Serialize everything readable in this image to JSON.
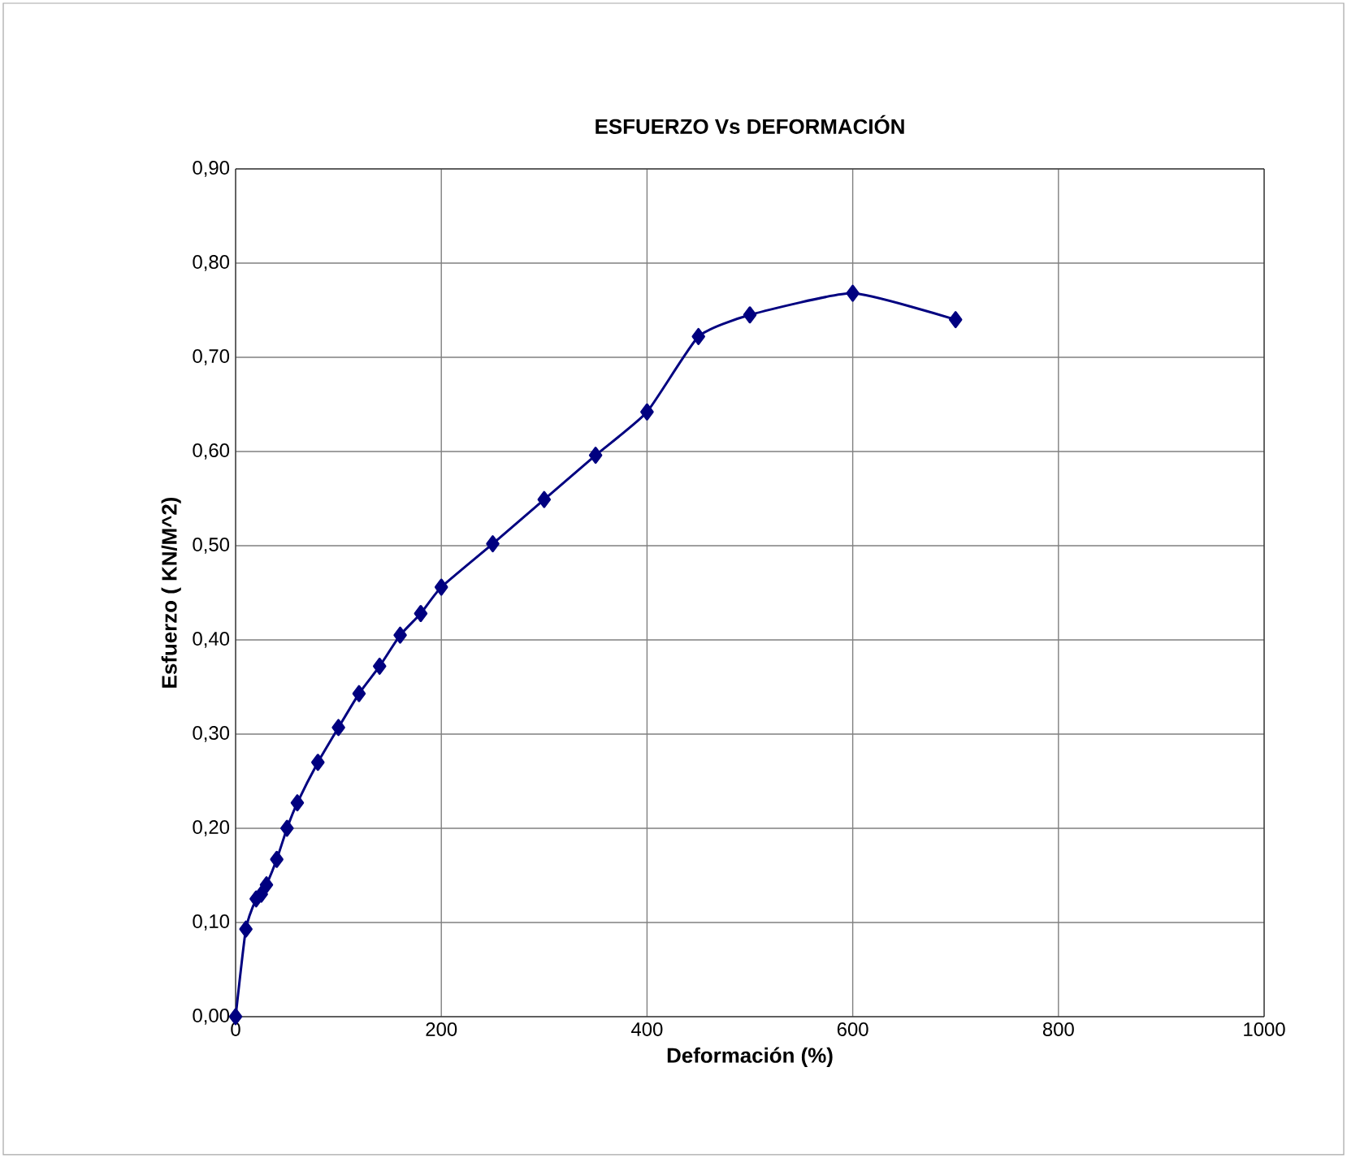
{
  "chart_data": {
    "type": "line",
    "title": "ESFUERZO Vs DEFORMACIÓN",
    "xlabel": "Deformación (%)",
    "ylabel": "Esfuerzo ( KN/M^2)",
    "x": [
      0,
      10,
      20,
      25,
      30,
      40,
      50,
      60,
      80,
      100,
      120,
      140,
      160,
      180,
      200,
      250,
      300,
      350,
      400,
      450,
      500,
      600,
      700
    ],
    "series": [
      {
        "color": "#000080",
        "values": [
          0,
          0.093,
          0.125,
          0.13,
          0.14,
          0.167,
          0.2,
          0.227,
          0.27,
          0.307,
          0.343,
          0.372,
          0.405,
          0.428,
          0.456,
          0.502,
          0.549,
          0.596,
          0.642,
          0.722,
          0.745,
          0.768,
          0.74
        ]
      }
    ],
    "xlim": [
      0,
      1000
    ],
    "xticks": [
      0,
      200,
      400,
      600,
      800,
      1000
    ],
    "ylim": [
      0,
      0.9
    ],
    "yticks": [
      {
        "value": 0,
        "label": "0,00"
      },
      {
        "value": 0.1,
        "label": "0,10"
      },
      {
        "value": 0.2,
        "label": "0,20"
      },
      {
        "value": 0.3,
        "label": "0,30"
      },
      {
        "value": 0.4,
        "label": "0,40"
      },
      {
        "value": 0.5,
        "label": "0,50"
      },
      {
        "value": 0.6,
        "label": "0,60"
      },
      {
        "value": 0.7,
        "label": "0,70"
      },
      {
        "value": 0.8,
        "label": "0,80"
      },
      {
        "value": 0.9,
        "label": "0,90"
      }
    ],
    "grid": true,
    "marker": "diamond",
    "line_style": "solid"
  }
}
